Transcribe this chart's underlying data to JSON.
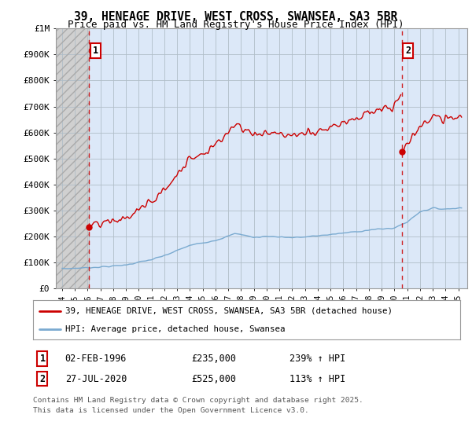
{
  "title_line1": "39, HENEAGE DRIVE, WEST CROSS, SWANSEA, SA3 5BR",
  "title_line2": "Price paid vs. HM Land Registry's House Price Index (HPI)",
  "title_fontsize": 10.5,
  "subtitle_fontsize": 9,
  "ylabel_ticks": [
    "£0",
    "£100K",
    "£200K",
    "£300K",
    "£400K",
    "£500K",
    "£600K",
    "£700K",
    "£800K",
    "£900K",
    "£1M"
  ],
  "ytick_values": [
    0,
    100000,
    200000,
    300000,
    400000,
    500000,
    600000,
    700000,
    800000,
    900000,
    1000000
  ],
  "ylim": [
    0,
    1000000
  ],
  "xlim_start": 1993.5,
  "xlim_end": 2025.7,
  "background_color": "#ffffff",
  "plot_bg_color": "#dce8f8",
  "hatch_color": "#c8c8c8",
  "grid_color": "#b0bec8",
  "red_line_color": "#cc0000",
  "blue_line_color": "#7aaad0",
  "dashed_red_color": "#cc0000",
  "marker1_x": 1996.1,
  "marker1_y": 235000,
  "marker2_x": 2020.58,
  "marker2_y": 525000,
  "marker1_label": "1",
  "marker2_label": "2",
  "label1_date": "02-FEB-1996",
  "label1_price": "£235,000",
  "label1_hpi": "239% ↑ HPI",
  "label2_date": "27-JUL-2020",
  "label2_price": "£525,000",
  "label2_hpi": "113% ↑ HPI",
  "legend_line1": "39, HENEAGE DRIVE, WEST CROSS, SWANSEA, SA3 5BR (detached house)",
  "legend_line2": "HPI: Average price, detached house, Swansea",
  "footer_line1": "Contains HM Land Registry data © Crown copyright and database right 2025.",
  "footer_line2": "This data is licensed under the Open Government Licence v3.0.",
  "xtick_years": [
    1994,
    1995,
    1996,
    1997,
    1998,
    1999,
    2000,
    2001,
    2002,
    2003,
    2004,
    2005,
    2006,
    2007,
    2008,
    2009,
    2010,
    2011,
    2012,
    2013,
    2014,
    2015,
    2016,
    2017,
    2018,
    2019,
    2020,
    2021,
    2022,
    2023,
    2024,
    2025
  ]
}
